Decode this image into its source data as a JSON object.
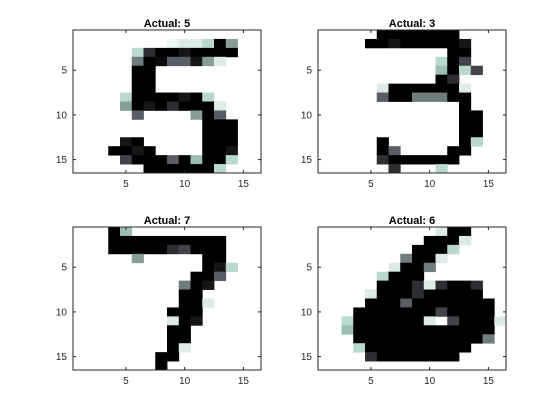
{
  "figure": {
    "background": "#ffffff"
  },
  "chart_data": [
    {
      "type": "heatmap",
      "title": "Actual: 5",
      "xlim": [
        0.5,
        16.5
      ],
      "ylim": [
        0.5,
        16.5
      ],
      "y_direction": "reversed",
      "xticks": [
        5,
        10,
        15
      ],
      "yticks": [
        5,
        10,
        15
      ],
      "colormap": "bone",
      "value_range": [
        0,
        1
      ],
      "grid": false,
      "values": [
        [
          0,
          0,
          0,
          0,
          0,
          0,
          0,
          0,
          0,
          0,
          0,
          0,
          0,
          0,
          0,
          0
        ],
        [
          0,
          0,
          0,
          0,
          0,
          0,
          0,
          0,
          0.05,
          0.1,
          0.1,
          0.2,
          1,
          0.4,
          0,
          0
        ],
        [
          0,
          0,
          0,
          0,
          0,
          0.2,
          0.8,
          1,
          1,
          0.9,
          1,
          1,
          1,
          1,
          0,
          0
        ],
        [
          0,
          0,
          0,
          0,
          0,
          0.5,
          1,
          0.95,
          0.6,
          0.6,
          0.9,
          0.4,
          0.1,
          0,
          0,
          0
        ],
        [
          0,
          0,
          0,
          0,
          0,
          1,
          1,
          0,
          0,
          0,
          0,
          0,
          0,
          0,
          0,
          0
        ],
        [
          0,
          0,
          0,
          0,
          0,
          1,
          1,
          0,
          0,
          0,
          0,
          0,
          0,
          0,
          0,
          0
        ],
        [
          0,
          0,
          0,
          0,
          0,
          1,
          1,
          0,
          0,
          0,
          0,
          0,
          0,
          0,
          0,
          0
        ],
        [
          0,
          0,
          0,
          0,
          0.2,
          1,
          1,
          1,
          1,
          0.9,
          1,
          0.2,
          0,
          0,
          0,
          0
        ],
        [
          0,
          0,
          0,
          0,
          0.4,
          1,
          0.9,
          1,
          0.8,
          1,
          1,
          1,
          0.1,
          0,
          0,
          0
        ],
        [
          0,
          0,
          0,
          0,
          0,
          0.6,
          0,
          0,
          0,
          0,
          0.4,
          1,
          0.6,
          0,
          0,
          0
        ],
        [
          0,
          0,
          0,
          0,
          0,
          0,
          0,
          0,
          0,
          0,
          0,
          1,
          1,
          1,
          0,
          0
        ],
        [
          0,
          0,
          0,
          0,
          0,
          0,
          0,
          0,
          0,
          0,
          0,
          1,
          1,
          1,
          0,
          0
        ],
        [
          0,
          0,
          0,
          0,
          0.9,
          1,
          0,
          0,
          0,
          0,
          0,
          1,
          1,
          1,
          0,
          0
        ],
        [
          0,
          0,
          0,
          1,
          1,
          0.9,
          1,
          0,
          0,
          0,
          0,
          1,
          1,
          0.9,
          0,
          0
        ],
        [
          0,
          0,
          0,
          0,
          0.7,
          1,
          1,
          1,
          0.6,
          1,
          0.3,
          1,
          1,
          0.2,
          0,
          0
        ],
        [
          0,
          0,
          0,
          0,
          0,
          0,
          1,
          1,
          1,
          1,
          1,
          1,
          0.2,
          0,
          0,
          0
        ]
      ]
    },
    {
      "type": "heatmap",
      "title": "Actual: 3",
      "xlim": [
        0.5,
        16.5
      ],
      "ylim": [
        0.5,
        16.5
      ],
      "y_direction": "reversed",
      "xticks": [
        5,
        10,
        15
      ],
      "yticks": [
        5,
        10,
        15
      ],
      "colormap": "bone",
      "value_range": [
        0,
        1
      ],
      "grid": false,
      "values": [
        [
          0,
          0,
          0,
          0,
          0,
          1,
          1,
          1,
          1,
          1,
          1,
          1,
          0,
          0,
          0,
          0
        ],
        [
          0,
          0,
          0,
          0,
          1,
          1,
          0.9,
          1,
          1,
          1,
          1,
          1,
          0.9,
          0,
          0,
          0
        ],
        [
          0,
          0,
          0,
          0,
          0,
          0,
          0,
          0,
          0,
          0,
          0,
          1,
          1,
          0,
          0,
          0
        ],
        [
          0,
          0,
          0,
          0,
          0,
          0,
          0,
          0,
          0,
          0,
          0.2,
          1,
          0.7,
          0,
          0,
          0
        ],
        [
          0,
          0,
          0,
          0,
          0,
          0,
          0,
          0,
          0,
          0,
          0.3,
          1,
          0.2,
          0.7,
          0,
          0
        ],
        [
          0,
          0,
          0,
          0,
          0,
          0,
          0,
          0,
          0,
          0,
          1,
          0.8,
          0,
          0,
          0,
          0
        ],
        [
          0,
          0,
          0,
          0,
          0,
          0.1,
          1,
          1,
          1,
          1,
          1,
          1,
          0.1,
          0,
          0,
          0
        ],
        [
          0,
          0,
          0,
          0,
          0,
          0.6,
          1,
          1,
          0.5,
          0.5,
          0.5,
          1,
          1,
          0,
          0,
          0
        ],
        [
          0,
          0,
          0,
          0,
          0,
          0,
          0,
          0,
          0,
          0,
          0,
          0,
          1,
          0,
          0,
          0
        ],
        [
          0,
          0,
          0,
          0,
          0,
          0,
          0,
          0,
          0,
          0,
          0,
          0,
          1,
          1,
          0,
          0
        ],
        [
          0,
          0,
          0,
          0,
          0,
          0,
          0,
          0,
          0,
          0,
          0,
          0,
          1,
          1,
          0,
          0
        ],
        [
          0,
          0,
          0,
          0,
          0,
          0,
          0,
          0,
          0,
          0,
          0,
          0,
          1,
          1,
          0,
          0
        ],
        [
          0,
          0,
          0,
          0,
          0,
          1,
          0,
          0,
          0,
          0,
          0,
          0,
          1,
          0.2,
          0,
          0
        ],
        [
          0,
          0,
          0,
          0,
          0,
          1,
          0.6,
          0,
          0,
          0,
          0,
          1,
          1,
          0,
          0,
          0
        ],
        [
          0,
          0,
          0,
          0,
          0,
          0.8,
          1,
          1,
          1,
          1,
          1,
          1,
          0,
          0,
          0,
          0
        ],
        [
          0,
          0,
          0,
          0,
          0,
          0,
          0.8,
          0,
          0,
          0,
          0.2,
          0,
          0,
          0,
          0,
          0
        ]
      ]
    },
    {
      "type": "heatmap",
      "title": "Actual: 7",
      "xlim": [
        0.5,
        16.5
      ],
      "ylim": [
        0.5,
        16.5
      ],
      "y_direction": "reversed",
      "xticks": [
        5,
        10,
        15
      ],
      "yticks": [
        5,
        10,
        15
      ],
      "colormap": "bone",
      "value_range": [
        0,
        1
      ],
      "grid": false,
      "values": [
        [
          0,
          0,
          0,
          1,
          0.3,
          0,
          0,
          0,
          0,
          0,
          0,
          0,
          0,
          0,
          0,
          0
        ],
        [
          0,
          0,
          0,
          1,
          1,
          1,
          1,
          1,
          1,
          1,
          1,
          1,
          1,
          0,
          0,
          0
        ],
        [
          0,
          0,
          0,
          1,
          1,
          1,
          1,
          1,
          0.8,
          0.7,
          1,
          1,
          1,
          0,
          0,
          0
        ],
        [
          0,
          0,
          0,
          0,
          0,
          0.4,
          0,
          0,
          0,
          0,
          0,
          1,
          1,
          0,
          0,
          0
        ],
        [
          0,
          0,
          0,
          0,
          0,
          0,
          0,
          0,
          0,
          0,
          0,
          1,
          0.9,
          0.2,
          0,
          0
        ],
        [
          0,
          0,
          0,
          0,
          0,
          0,
          0,
          0,
          0,
          0,
          1,
          1,
          0.6,
          0,
          0,
          0
        ],
        [
          0,
          0,
          0,
          0,
          0,
          0,
          0,
          0,
          0,
          0.5,
          1,
          0.9,
          0,
          0,
          0,
          0
        ],
        [
          0,
          0,
          0,
          0,
          0,
          0,
          0,
          0,
          0,
          1,
          1,
          0,
          0,
          0,
          0,
          0
        ],
        [
          0,
          0,
          0,
          0,
          0,
          0,
          0,
          0,
          0,
          1,
          1,
          0.1,
          0,
          0,
          0,
          0
        ],
        [
          0,
          0,
          0,
          0,
          0,
          0,
          0,
          0,
          1,
          1,
          1,
          0,
          0,
          0,
          0,
          0
        ],
        [
          0,
          0,
          0,
          0,
          0,
          0,
          0,
          0,
          0.1,
          1,
          0.9,
          0,
          0,
          0,
          0,
          0
        ],
        [
          0,
          0,
          0,
          0,
          0,
          0,
          0,
          0,
          1,
          1,
          0,
          0,
          0,
          0,
          0,
          0
        ],
        [
          0,
          0,
          0,
          0,
          0,
          0,
          0,
          0,
          1,
          1,
          0,
          0,
          0,
          0,
          0,
          0
        ],
        [
          0,
          0,
          0,
          0,
          0,
          0,
          0,
          0,
          1,
          0.1,
          0,
          0,
          0,
          0,
          0,
          0
        ],
        [
          0,
          0,
          0,
          0,
          0,
          0,
          0,
          1,
          1,
          0,
          0,
          0,
          0,
          0,
          0,
          0
        ],
        [
          0,
          0,
          0,
          0,
          0,
          0,
          0,
          1,
          0,
          0,
          0,
          0,
          0,
          0,
          0,
          0
        ]
      ]
    },
    {
      "type": "heatmap",
      "title": "Actual: 6",
      "xlim": [
        0.5,
        16.5
      ],
      "ylim": [
        0.5,
        16.5
      ],
      "y_direction": "reversed",
      "xticks": [
        5,
        10,
        15
      ],
      "yticks": [
        5,
        10,
        15
      ],
      "colormap": "bone",
      "value_range": [
        0,
        1
      ],
      "grid": false,
      "values": [
        [
          0,
          0,
          0,
          0,
          0,
          0,
          0,
          0,
          0,
          0,
          0.1,
          1,
          1,
          0,
          0,
          0
        ],
        [
          0,
          0,
          0,
          0,
          0,
          0,
          0,
          0,
          0,
          1,
          1,
          1,
          0.1,
          0,
          0,
          0
        ],
        [
          0,
          0,
          0,
          0,
          0,
          0,
          0,
          0,
          1,
          1,
          1,
          0.2,
          0,
          0,
          0,
          0
        ],
        [
          0,
          0,
          0,
          0,
          0,
          0,
          0,
          0.5,
          1,
          1,
          0.1,
          0,
          0,
          0,
          0,
          0
        ],
        [
          0,
          0,
          0,
          0,
          0,
          0,
          0.1,
          1,
          1,
          0.5,
          0,
          0,
          0,
          0,
          0,
          0
        ],
        [
          0,
          0,
          0,
          0,
          0,
          0.2,
          1,
          1,
          1,
          0,
          0,
          0,
          0,
          0,
          0,
          0
        ],
        [
          0,
          0,
          0,
          0,
          0,
          1,
          1,
          1,
          0.8,
          0.1,
          0.8,
          1,
          1,
          0.8,
          0,
          0
        ],
        [
          0,
          0,
          0,
          0,
          0.1,
          1,
          1,
          1,
          0.8,
          1,
          1,
          1,
          1,
          1,
          0,
          0
        ],
        [
          0,
          0,
          0,
          0,
          1,
          1,
          1,
          0.6,
          1,
          1,
          1,
          1,
          1,
          1,
          1,
          0
        ],
        [
          0,
          0,
          0,
          1,
          1,
          1,
          1,
          1,
          1,
          1,
          0.7,
          1,
          1,
          1,
          1,
          0
        ],
        [
          0,
          0,
          0.2,
          1,
          1,
          1,
          1,
          1,
          1,
          0.1,
          0,
          0.7,
          1,
          1,
          1,
          0.1
        ],
        [
          0,
          0,
          0.3,
          1,
          1,
          1,
          1,
          1,
          1,
          1,
          1,
          1,
          1,
          1,
          1,
          0
        ],
        [
          0,
          0,
          0,
          1,
          1,
          1,
          1,
          1,
          1,
          1,
          1,
          1,
          1,
          1,
          0.5,
          0
        ],
        [
          0,
          0,
          0,
          0.2,
          1,
          1,
          1,
          1,
          1,
          1,
          1,
          1,
          1,
          0,
          0,
          0
        ],
        [
          0,
          0,
          0,
          0,
          0.8,
          1,
          1,
          1,
          1,
          1,
          1,
          1,
          0,
          0,
          0,
          0
        ],
        [
          0,
          0,
          0,
          0,
          0,
          0,
          0,
          0,
          0,
          0,
          0,
          0,
          0,
          0,
          0,
          0
        ]
      ]
    }
  ]
}
